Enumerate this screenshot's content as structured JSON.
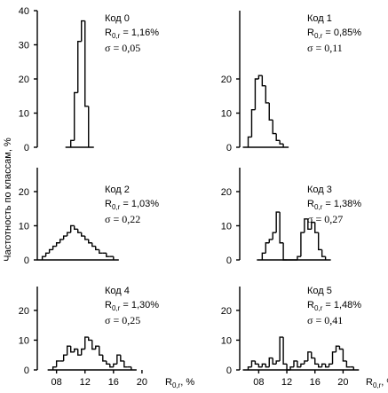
{
  "ylabel": "Частотность по классам, %",
  "chart_data": [
    {
      "type": "histogram",
      "label": "Код 0",
      "mean_text": [
        "R",
        "0,r",
        " = 1,16%"
      ],
      "sigma_text": "σ = 0,05",
      "bins": [
        1.0,
        1.05,
        1.1,
        1.15,
        1.2,
        1.25
      ],
      "values": [
        2,
        16,
        31,
        37,
        12
      ],
      "xlim": [
        0.53,
        2.5
      ],
      "ylim": [
        0,
        40
      ],
      "yticks": [
        0,
        10,
        20,
        30,
        40
      ],
      "color": "#000000"
    },
    {
      "type": "histogram",
      "label": "Код 1",
      "mean_text": [
        "R",
        "0,r",
        " = 0,85%"
      ],
      "sigma_text": "σ = 0,11",
      "bins": [
        0.65,
        0.7,
        0.75,
        0.8,
        0.85,
        0.9,
        0.95,
        1.0,
        1.05,
        1.1,
        1.15
      ],
      "values": [
        3,
        11,
        20,
        21,
        18,
        13,
        8,
        4,
        2,
        1
      ],
      "xlim": [
        0.53,
        2.5
      ],
      "ylim": [
        0,
        40
      ],
      "yticks": [
        0,
        10,
        20
      ],
      "color": "#000000"
    },
    {
      "type": "histogram",
      "label": "Код 2",
      "mean_text": [
        "R",
        "0,r",
        " = 1,03%"
      ],
      "sigma_text": "σ = 0,22",
      "bins": [
        0.6,
        0.65,
        0.7,
        0.75,
        0.8,
        0.85,
        0.9,
        0.95,
        1.0,
        1.05,
        1.1,
        1.15,
        1.2,
        1.25,
        1.3,
        1.35,
        1.4,
        1.45,
        1.5,
        1.55,
        1.6
      ],
      "values": [
        1,
        2,
        3,
        4,
        5,
        6,
        7,
        8,
        10,
        9,
        8,
        7,
        6,
        5,
        4,
        3,
        2,
        2,
        1,
        1
      ],
      "xlim": [
        0.53,
        2.5
      ],
      "ylim": [
        0,
        27
      ],
      "yticks": [
        0,
        10,
        20
      ],
      "color": "#000000"
    },
    {
      "type": "histogram",
      "label": "Код 3",
      "mean_text": [
        "R",
        "0,r",
        " = 1,38%"
      ],
      "sigma_text": "σ = 0,27",
      "bins": [
        0.85,
        0.9,
        0.95,
        1.0,
        1.05,
        1.1,
        1.15,
        1.2,
        1.25,
        1.3,
        1.35,
        1.4,
        1.45,
        1.5,
        1.55,
        1.6,
        1.65,
        1.7,
        1.75
      ],
      "values": [
        2,
        5,
        6,
        8,
        14,
        5,
        0,
        0,
        0,
        0,
        1,
        8,
        12,
        9,
        11,
        8,
        3,
        1
      ],
      "xlim": [
        0.53,
        2.5
      ],
      "ylim": [
        0,
        27
      ],
      "yticks": [
        0,
        10,
        20
      ],
      "color": "#000000"
    },
    {
      "type": "histogram",
      "label": "Код 4",
      "mean_text": [
        "R",
        "0,r",
        " = 1,30%"
      ],
      "sigma_text": "σ = 0,25",
      "bins": [
        0.75,
        0.8,
        0.85,
        0.9,
        0.95,
        1.0,
        1.05,
        1.1,
        1.15,
        1.2,
        1.25,
        1.3,
        1.35,
        1.4,
        1.45,
        1.5,
        1.55,
        1.6,
        1.65,
        1.7,
        1.75,
        1.8,
        1.85
      ],
      "values": [
        1,
        3,
        3,
        5,
        8,
        6,
        7,
        5,
        7,
        11,
        10,
        7,
        8,
        5,
        3,
        2,
        1,
        2,
        5,
        3,
        1,
        1
      ],
      "xlim": [
        0.53,
        2.5
      ],
      "ylim": [
        0,
        28
      ],
      "yticks": [
        0,
        10,
        20
      ],
      "xticks": [
        {
          "value": 0.8,
          "label": "08"
        },
        {
          "value": 1.2,
          "label": "12"
        },
        {
          "value": 1.6,
          "label": "16"
        },
        {
          "value": 2.0,
          "label": "20"
        }
      ],
      "xlabel": [
        "R",
        "0,r",
        ", %"
      ],
      "color": "#000000"
    },
    {
      "type": "histogram",
      "label": "Код 5",
      "mean_text": [
        "R",
        "0,r",
        " = 1,48%"
      ],
      "sigma_text": "σ = 0,41",
      "bins": [
        0.65,
        0.7,
        0.75,
        0.8,
        0.85,
        0.9,
        0.95,
        1.0,
        1.05,
        1.1,
        1.15,
        1.2,
        1.25,
        1.3,
        1.35,
        1.4,
        1.45,
        1.5,
        1.55,
        1.6,
        1.65,
        1.7,
        1.75,
        1.8,
        1.85,
        1.9,
        1.95,
        2.0,
        2.05,
        2.1,
        2.15
      ],
      "values": [
        1,
        3,
        2,
        1,
        2,
        1,
        4,
        2,
        3,
        11,
        2,
        0,
        1,
        3,
        1,
        2,
        3,
        6,
        4,
        2,
        1,
        2,
        1,
        2,
        6,
        8,
        7,
        3,
        1,
        1
      ],
      "xlim": [
        0.53,
        2.5
      ],
      "ylim": [
        0,
        28
      ],
      "yticks": [
        0,
        10,
        20
      ],
      "xticks": [
        {
          "value": 0.8,
          "label": "08"
        },
        {
          "value": 1.2,
          "label": "12"
        },
        {
          "value": 1.6,
          "label": "16"
        },
        {
          "value": 2.0,
          "label": "20"
        }
      ],
      "xlabel": [
        "R",
        "0,r",
        ", %"
      ],
      "color": "#000000"
    }
  ]
}
